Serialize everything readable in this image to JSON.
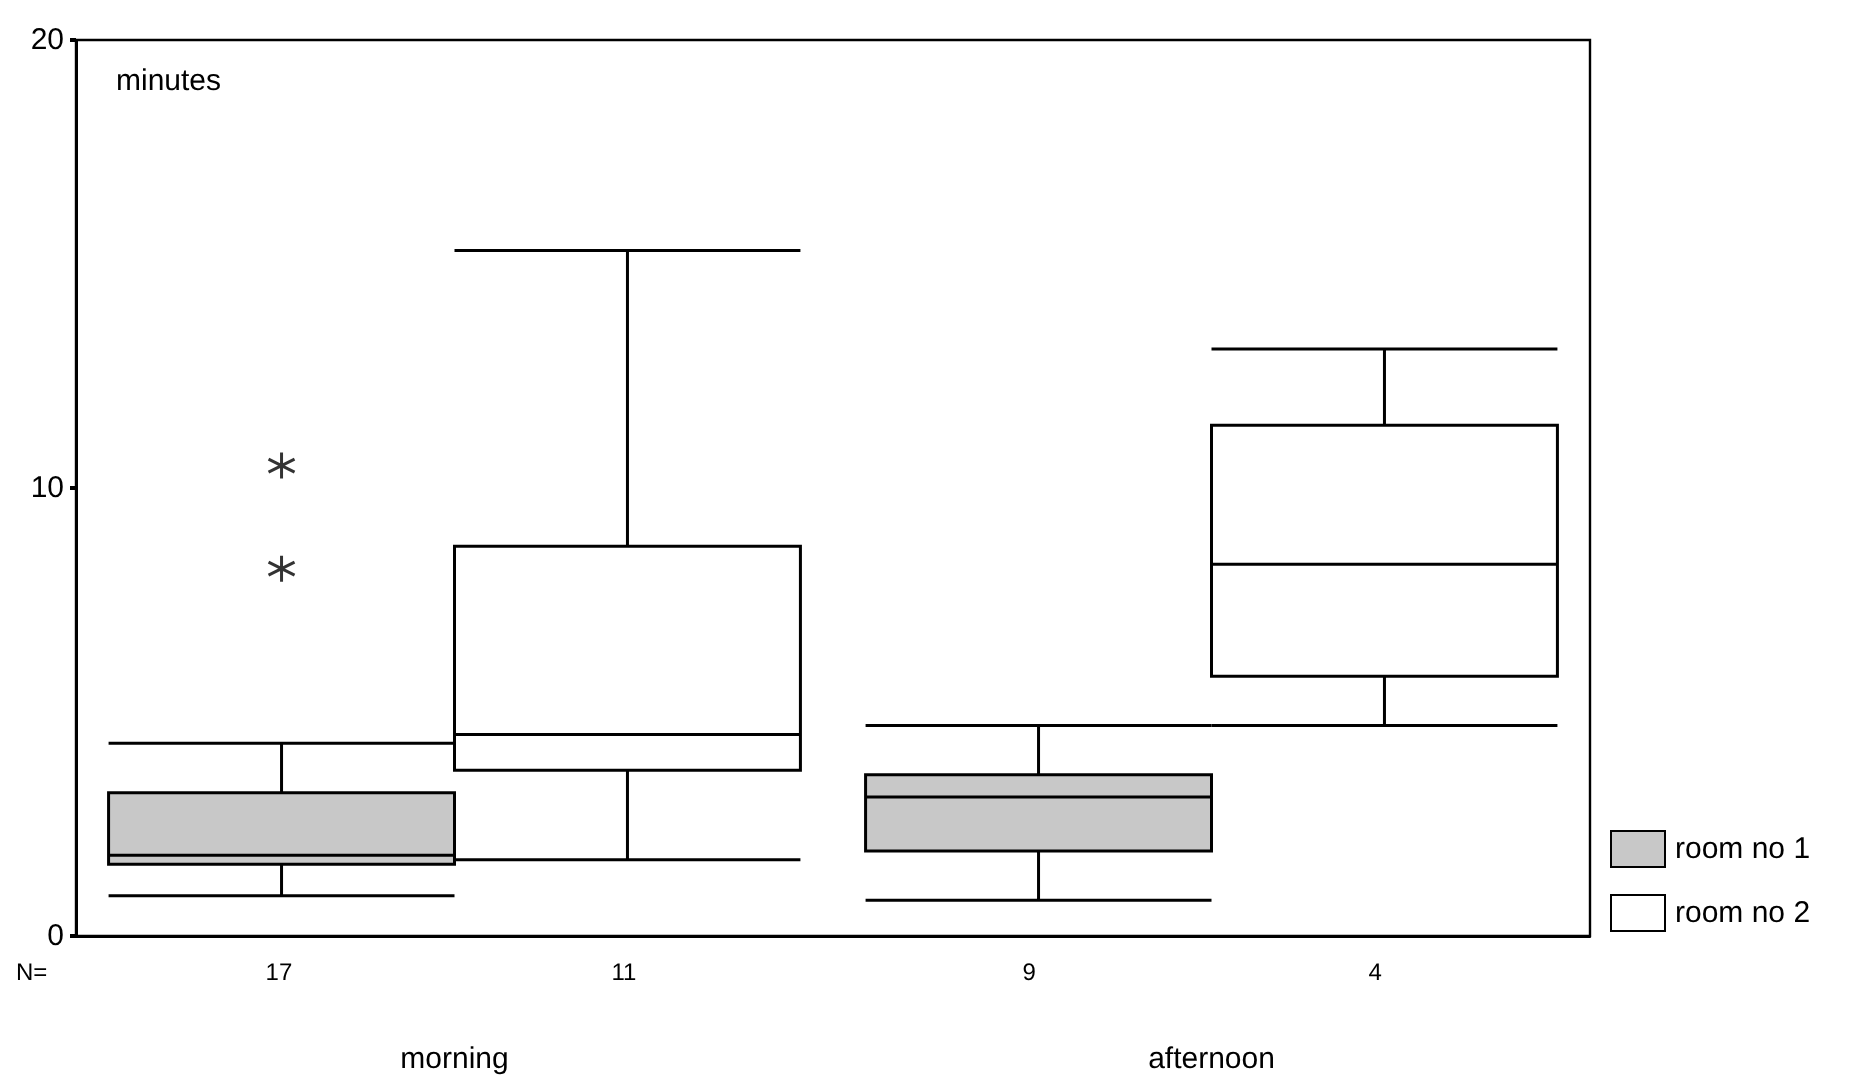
{
  "chart_data": {
    "type": "box",
    "ylabel": "minutes",
    "categories": [
      "morning",
      "afternoon"
    ],
    "series": [
      {
        "name": "room no 1",
        "color": "#c8c8c8",
        "boxes": [
          {
            "low": 0.9,
            "q1": 1.6,
            "median": 1.8,
            "q3": 3.2,
            "high": 4.3,
            "outliers": [
              10.5,
              8.2
            ]
          },
          {
            "low": 0.8,
            "q1": 1.9,
            "median": 3.1,
            "q3": 3.6,
            "high": 4.7
          }
        ]
      },
      {
        "name": "room no 2",
        "color": "#ffffff",
        "boxes": [
          {
            "low": 1.7,
            "q1": 3.7,
            "median": 4.5,
            "q3": 8.7,
            "high": 15.3
          },
          {
            "low": 4.7,
            "q1": 5.8,
            "median": 8.3,
            "q3": 11.4,
            "high": 13.1
          }
        ]
      }
    ],
    "ylim": [
      0,
      20
    ],
    "yticks": [
      0,
      10,
      20
    ],
    "grid": false,
    "legend": "bottom right",
    "annotations": [
      "N=",
      "17",
      "11",
      "9",
      "4"
    ]
  }
}
